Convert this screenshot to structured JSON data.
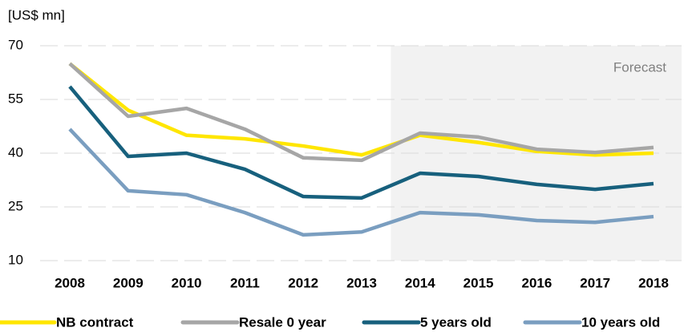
{
  "chart_data": {
    "type": "line",
    "y_axis_label": "[US$ mn]",
    "annotation": "Forecast",
    "shaded_from": "2014",
    "categories": [
      "2008",
      "2009",
      "2010",
      "2011",
      "2012",
      "2013",
      "2014",
      "2015",
      "2016",
      "2017",
      "2018"
    ],
    "series": [
      {
        "name": "NB contract",
        "color": "#ffe600",
        "values": [
          65,
          52,
          45,
          44,
          42,
          39.5,
          45,
          43,
          40.5,
          39.5,
          40
        ]
      },
      {
        "name": "Resale 0 year",
        "color": "#a6a6a6",
        "values": [
          65,
          50.3,
          52.5,
          46.7,
          38.7,
          38,
          45.6,
          44.5,
          41.1,
          40.2,
          41.6
        ]
      },
      {
        "name": "5 years old",
        "color": "#17607d",
        "values": [
          58.6,
          39.1,
          40,
          35.5,
          27.9,
          27.5,
          34.4,
          33.5,
          31.3,
          29.9,
          31.5
        ]
      },
      {
        "name": "10 years old",
        "color": "#7a9ec0",
        "values": [
          46.7,
          29.5,
          28.4,
          23.4,
          17.2,
          18,
          23.4,
          22.8,
          21.2,
          20.7,
          22.3
        ]
      }
    ],
    "ylim": [
      10,
      70
    ],
    "yticks": [
      10,
      25,
      40,
      55,
      70
    ],
    "grid": true
  }
}
